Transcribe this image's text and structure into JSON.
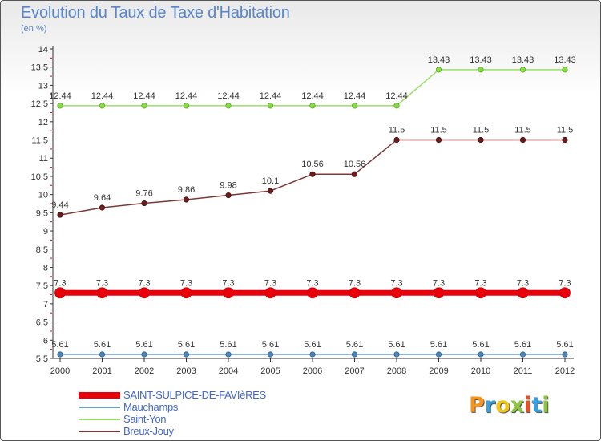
{
  "title": "Evolution du Taux de Taxe d'Habitation",
  "subtitle": "(en %)",
  "logo": {
    "text": "Proxiti",
    "colors": [
      "#f7941d",
      "#3aa0dd",
      "#f0c419",
      "#8cc63f",
      "#e94e1b",
      "#3aa0dd",
      "#8cc63f"
    ]
  },
  "chart_data": {
    "type": "line",
    "title": "Evolution du Taux de Taxe d'Habitation",
    "ylabel": "(en %)",
    "xlabel": "",
    "ylim": [
      5.5,
      14
    ],
    "y_ticks": [
      "5.5",
      "6",
      "6.5",
      "7",
      "7.5",
      "8",
      "8.5",
      "9",
      "9.5",
      "10",
      "10.5",
      "11",
      "11.5",
      "12",
      "12.5",
      "13",
      "13.5",
      "14"
    ],
    "x": [
      "2000",
      "2001",
      "2002",
      "2003",
      "2004",
      "2005",
      "2006",
      "2007",
      "2008",
      "2009",
      "2010",
      "2011",
      "2012"
    ],
    "grid": false,
    "legend_position": "bottom-left",
    "series": [
      {
        "name": "SAINT-SULPICE-DE-FAVIèRES",
        "color": "#e8000b",
        "values": [
          7.3,
          7.3,
          7.3,
          7.3,
          7.3,
          7.3,
          7.3,
          7.3,
          7.3,
          7.3,
          7.3,
          7.3,
          7.3
        ],
        "labels": [
          "7.3",
          "7.3",
          "7.3",
          "7.3",
          "7.3",
          "7.3",
          "7.3",
          "7.3",
          "7.3",
          "7.3",
          "7.3",
          "7.3",
          "7.3"
        ]
      },
      {
        "name": "Mauchamps",
        "color": "#6f9ec7",
        "values": [
          5.61,
          5.61,
          5.61,
          5.61,
          5.61,
          5.61,
          5.61,
          5.61,
          5.61,
          5.61,
          5.61,
          5.61,
          5.61
        ],
        "labels": [
          "5.61",
          "5.61",
          "5.61",
          "5.61",
          "5.61",
          "5.61",
          "5.61",
          "5.61",
          "5.61",
          "5.61",
          "5.61",
          "5.61",
          "5.61"
        ]
      },
      {
        "name": "Saint-Yon",
        "color": "#99dd66",
        "values": [
          12.44,
          12.44,
          12.44,
          12.44,
          12.44,
          12.44,
          12.44,
          12.44,
          12.44,
          13.43,
          13.43,
          13.43,
          13.43
        ],
        "labels": [
          "12.44",
          "12.44",
          "12.44",
          "12.44",
          "12.44",
          "12.44",
          "12.44",
          "12.44",
          "12.44",
          "13.43",
          "13.43",
          "13.43",
          "13.43"
        ]
      },
      {
        "name": "Breux-Jouy",
        "color": "#7a3838",
        "values": [
          9.44,
          9.64,
          9.76,
          9.86,
          9.98,
          10.1,
          10.56,
          10.56,
          11.5,
          11.5,
          11.5,
          11.5,
          11.5
        ],
        "labels": [
          "9.44",
          "9.64",
          "9.76",
          "9.86",
          "9.98",
          "10.1",
          "10.56",
          "10.56",
          "11.5",
          "11.5",
          "11.5",
          "11.5",
          "11.5"
        ]
      }
    ]
  }
}
